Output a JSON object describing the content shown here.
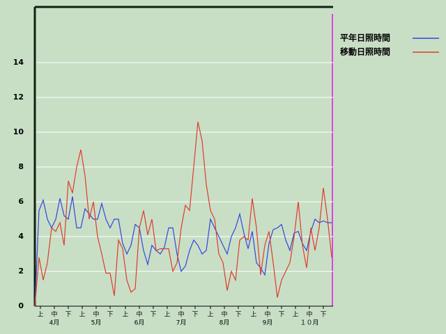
{
  "chart_data": {
    "type": "line",
    "x": [
      0,
      3,
      6,
      9,
      12,
      15,
      18,
      21,
      24,
      27,
      30,
      33,
      36,
      39,
      42,
      45,
      48,
      51,
      54,
      57,
      60,
      63,
      66,
      69,
      72,
      75,
      78,
      81,
      84,
      87,
      90,
      93,
      96,
      99,
      102,
      105,
      108,
      111,
      114,
      117,
      120,
      123,
      126,
      129,
      132,
      135,
      138,
      141,
      144,
      147,
      150,
      153,
      156,
      159,
      162,
      165,
      168,
      171,
      174,
      177,
      180,
      183,
      186,
      189,
      192,
      195,
      198,
      201,
      204,
      207,
      210,
      213
    ],
    "xlim": [
      0,
      214
    ],
    "xticks": [
      {
        "value": 4,
        "label": "上"
      },
      {
        "value": 14,
        "label": "中"
      },
      {
        "value": 24,
        "label": "下"
      },
      {
        "value": 34,
        "label": "上"
      },
      {
        "value": 44,
        "label": "中"
      },
      {
        "value": 54,
        "label": "下"
      },
      {
        "value": 65,
        "label": "上"
      },
      {
        "value": 75,
        "label": "中"
      },
      {
        "value": 85,
        "label": "下"
      },
      {
        "value": 95,
        "label": "上"
      },
      {
        "value": 105,
        "label": "中"
      },
      {
        "value": 115,
        "label": "下"
      },
      {
        "value": 126,
        "label": "上"
      },
      {
        "value": 136,
        "label": "中"
      },
      {
        "value": 146,
        "label": "下"
      },
      {
        "value": 157,
        "label": "上"
      },
      {
        "value": 167,
        "label": "中"
      },
      {
        "value": 177,
        "label": "下"
      },
      {
        "value": 187,
        "label": "上"
      },
      {
        "value": 197,
        "label": "中"
      },
      {
        "value": 207,
        "label": "下"
      }
    ],
    "month_labels": [
      {
        "value": 14,
        "label": "4月"
      },
      {
        "value": 44,
        "label": "5月"
      },
      {
        "value": 75,
        "label": "6月"
      },
      {
        "value": 105,
        "label": "7月"
      },
      {
        "value": 136,
        "label": "8月"
      },
      {
        "value": 167,
        "label": "9月"
      },
      {
        "value": 197,
        "label": "１０月"
      }
    ],
    "ylim": [
      0,
      17.2
    ],
    "yticks": [
      0,
      2,
      4,
      6,
      8,
      10,
      12,
      14
    ],
    "grid": true,
    "series": [
      {
        "name": "平年日照時間",
        "color": "#3344dd",
        "values": [
          0,
          5.5,
          6.1,
          5,
          4.5,
          5,
          6.2,
          5.2,
          5,
          6.3,
          4.5,
          4.5,
          5.6,
          5.3,
          5,
          5,
          5.9,
          5,
          4.5,
          5,
          5,
          3.6,
          3,
          3.5,
          4.7,
          4.5,
          3.2,
          2.4,
          3.5,
          3.2,
          3,
          3.4,
          4.5,
          4.5,
          3,
          2,
          2.3,
          3.2,
          3.8,
          3.5,
          3,
          3.2,
          5,
          4.5,
          4,
          3.5,
          3,
          4,
          4.5,
          5.3,
          4.2,
          3.3,
          4.3,
          2.5,
          2.2,
          1.8,
          3.6,
          4.4,
          4.5,
          4.7,
          3.8,
          3.2,
          4.2,
          4.3,
          3.6,
          3.2,
          4.3,
          5,
          4.8,
          4.9,
          4.8,
          4.8
        ]
      },
      {
        "name": "移動日照時間",
        "color": "#e03a2a",
        "values": [
          0,
          2.8,
          1.5,
          2.5,
          4.5,
          4.3,
          4.8,
          3.5,
          7.2,
          6.5,
          8,
          9,
          7.5,
          5,
          6,
          4,
          3,
          1.9,
          1.9,
          0.6,
          3.8,
          3.3,
          1.5,
          0.8,
          1,
          4.5,
          5.5,
          4.1,
          5,
          3.2,
          3.3,
          3.3,
          3.3,
          2,
          2.5,
          4.5,
          5.8,
          5.5,
          8,
          10.6,
          9.5,
          7,
          5.5,
          5,
          3,
          2.5,
          0.9,
          2,
          1.5,
          3.8,
          4,
          3.8,
          6.2,
          4.5,
          1.8,
          3.5,
          4.3,
          2.5,
          0.5,
          1.5,
          2,
          2.5,
          4,
          6,
          3.5,
          2.2,
          4.5,
          3.2,
          4.5,
          6.8,
          5,
          2.8
        ]
      }
    ]
  }
}
